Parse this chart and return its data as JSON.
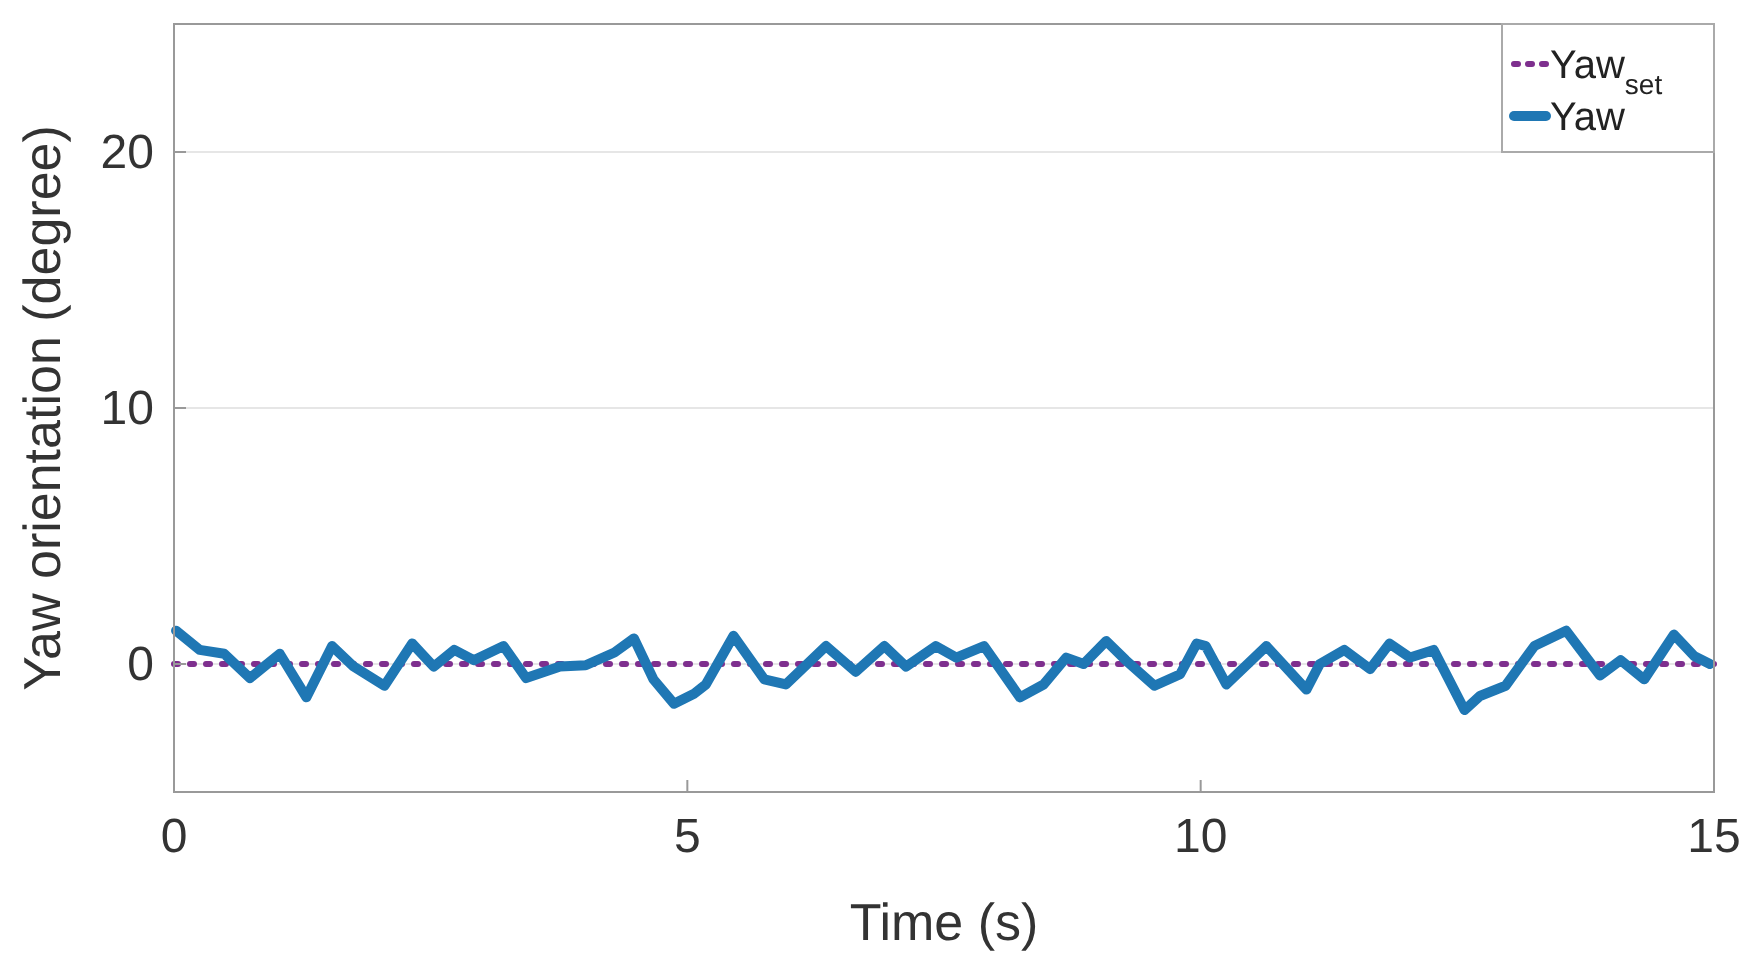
{
  "chart_data": {
    "type": "line",
    "xlabel": "Time (s)",
    "ylabel": "Yaw orientation (degree)",
    "xlim": [
      0,
      15
    ],
    "ylim": [
      -5,
      25
    ],
    "xticks": [
      0,
      5,
      10,
      15
    ],
    "yticks": [
      0,
      10,
      20
    ],
    "grid": "y",
    "legend": "top right",
    "series": [
      {
        "name": "Yaw$_{set}$",
        "color": "#7e2f8e",
        "line_style": "dotted",
        "x": [
          0,
          15
        ],
        "values": [
          0,
          0
        ]
      },
      {
        "name": "Yaw",
        "color": "#1f77b4",
        "line_style": "solid",
        "x": [
          0.02,
          0.25,
          0.49,
          0.74,
          1.03,
          1.29,
          1.54,
          1.75,
          2.05,
          2.32,
          2.53,
          2.73,
          2.92,
          3.21,
          3.43,
          3.76,
          4.01,
          4.29,
          4.48,
          4.67,
          4.87,
          5.07,
          5.18,
          5.45,
          5.75,
          5.96,
          6.35,
          6.64,
          6.92,
          7.13,
          7.42,
          7.62,
          7.89,
          8.24,
          8.47,
          8.69,
          8.86,
          9.08,
          9.27,
          9.55,
          9.8,
          9.96,
          10.05,
          10.25,
          10.64,
          11.03,
          11.16,
          11.4,
          11.65,
          11.84,
          12.04,
          12.27,
          12.57,
          12.72,
          12.97,
          13.25,
          13.56,
          13.89,
          14.09,
          14.32,
          14.61,
          14.81,
          14.96
        ],
        "values": [
          1.3,
          0.55,
          0.4,
          -0.55,
          0.4,
          -1.3,
          0.7,
          -0.1,
          -0.85,
          0.8,
          -0.1,
          0.55,
          0.15,
          0.7,
          -0.55,
          -0.1,
          -0.05,
          0.45,
          1.0,
          -0.6,
          -1.55,
          -1.15,
          -0.8,
          1.1,
          -0.6,
          -0.8,
          0.7,
          -0.3,
          0.7,
          -0.1,
          0.7,
          0.25,
          0.7,
          -1.3,
          -0.8,
          0.25,
          0,
          0.9,
          0.15,
          -0.85,
          -0.4,
          0.8,
          0.7,
          -0.8,
          0.7,
          -1.0,
          0,
          0.55,
          -0.2,
          0.8,
          0.25,
          0.55,
          -1.8,
          -1.25,
          -0.85,
          0.7,
          1.3,
          -0.45,
          0.15,
          -0.6,
          1.15,
          0.3,
          0
        ]
      }
    ]
  }
}
